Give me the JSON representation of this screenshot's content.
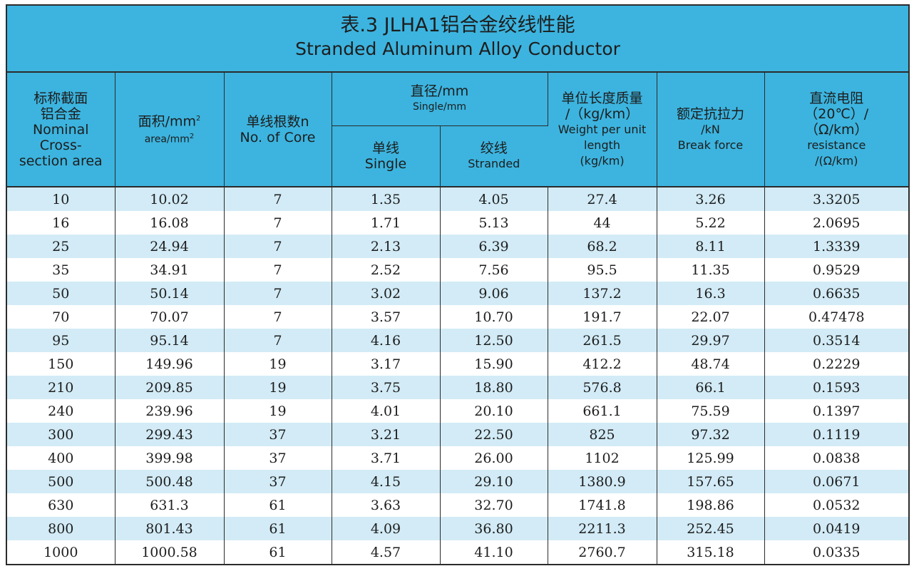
{
  "title": {
    "cn": "表.3  JLHA1铝合金绞线性能",
    "en": "Stranded Aluminum Alloy Conductor"
  },
  "headers": {
    "nominal": [
      "标称截面",
      "铝合金",
      "Nominal",
      "Cross-",
      "section area"
    ],
    "area_cn": "面积/mm",
    "area_en": "area/mm",
    "area_sup": "2",
    "cores_cn": "单线根数n",
    "cores_en": "No. of Core",
    "diameter_cn": "直径/mm",
    "diameter_en": "Single/mm",
    "single_cn": "单线",
    "single_en": "Single",
    "stranded_cn": "绞线",
    "stranded_en": "Stranded",
    "weight": [
      "单位长度质量",
      "/（kg/km）",
      "Weight per unit",
      "length",
      "(kg/km)"
    ],
    "force": [
      "额定抗拉力",
      "/kN",
      "Break force"
    ],
    "resistance": [
      "直流电阻",
      "（20℃）/",
      "（Ω/km）",
      "resistance",
      "/(Ω/km)"
    ]
  },
  "rows": [
    [
      "10",
      "10.02",
      "7",
      "1.35",
      "4.05",
      "27.4",
      "3.26",
      "3.3205"
    ],
    [
      "16",
      "16.08",
      "7",
      "1.71",
      "5.13",
      "44",
      "5.22",
      "2.0695"
    ],
    [
      "25",
      "24.94",
      "7",
      "2.13",
      "6.39",
      "68.2",
      "8.11",
      "1.3339"
    ],
    [
      "35",
      "34.91",
      "7",
      "2.52",
      "7.56",
      "95.5",
      "11.35",
      "0.9529"
    ],
    [
      "50",
      "50.14",
      "7",
      "3.02",
      "9.06",
      "137.2",
      "16.3",
      "0.6635"
    ],
    [
      "70",
      "70.07",
      "7",
      "3.57",
      "10.70",
      "191.7",
      "22.07",
      "0.47478"
    ],
    [
      "95",
      "95.14",
      "7",
      "4.16",
      "12.50",
      "261.5",
      "29.97",
      "0.3514"
    ],
    [
      "150",
      "149.96",
      "19",
      "3.17",
      "15.90",
      "412.2",
      "48.74",
      "0.2229"
    ],
    [
      "210",
      "209.85",
      "19",
      "3.75",
      "18.80",
      "576.8",
      "66.1",
      "0.1593"
    ],
    [
      "240",
      "239.96",
      "19",
      "4.01",
      "20.10",
      "661.1",
      "75.59",
      "0.1397"
    ],
    [
      "300",
      "299.43",
      "37",
      "3.21",
      "22.50",
      "825",
      "97.32",
      "0.1119"
    ],
    [
      "400",
      "399.98",
      "37",
      "3.71",
      "26.00",
      "1102",
      "125.99",
      "0.0838"
    ],
    [
      "500",
      "500.48",
      "37",
      "4.15",
      "29.10",
      "1380.9",
      "157.65",
      "0.0671"
    ],
    [
      "630",
      "631.3",
      "61",
      "3.63",
      "32.70",
      "1741.8",
      "198.86",
      "0.0532"
    ],
    [
      "800",
      "801.43",
      "61",
      "4.09",
      "36.80",
      "2211.3",
      "252.45",
      "0.0419"
    ],
    [
      "1000",
      "1000.58",
      "61",
      "4.57",
      "41.10",
      "2760.7",
      "315.18",
      "0.0335"
    ]
  ],
  "colors": {
    "header": "#3cb4df",
    "stripe": "#d2ebf6",
    "border": "#2b2b2b"
  }
}
